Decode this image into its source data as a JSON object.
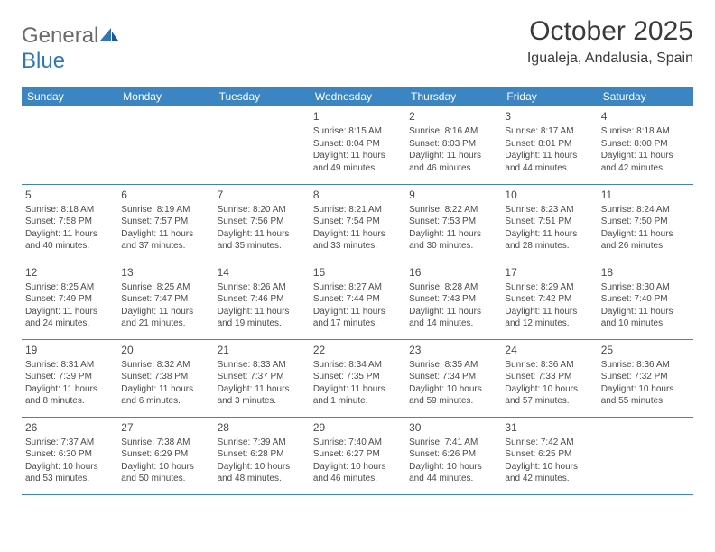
{
  "logo": {
    "text1": "General",
    "text2": "Blue"
  },
  "title": "October 2025",
  "subtitle": "Igualeja, Andalusia, Spain",
  "colors": {
    "header_bg": "#3b85c3",
    "header_text": "#ffffff",
    "text": "#4a4a4a",
    "title": "#3a3a3a",
    "logo_gray": "#6a6a6a",
    "logo_blue": "#2f78b5"
  },
  "days": [
    "Sunday",
    "Monday",
    "Tuesday",
    "Wednesday",
    "Thursday",
    "Friday",
    "Saturday"
  ],
  "weeks": [
    [
      null,
      null,
      null,
      {
        "n": "1",
        "sr": "Sunrise: 8:15 AM",
        "ss": "Sunset: 8:04 PM",
        "d1": "Daylight: 11 hours",
        "d2": "and 49 minutes."
      },
      {
        "n": "2",
        "sr": "Sunrise: 8:16 AM",
        "ss": "Sunset: 8:03 PM",
        "d1": "Daylight: 11 hours",
        "d2": "and 46 minutes."
      },
      {
        "n": "3",
        "sr": "Sunrise: 8:17 AM",
        "ss": "Sunset: 8:01 PM",
        "d1": "Daylight: 11 hours",
        "d2": "and 44 minutes."
      },
      {
        "n": "4",
        "sr": "Sunrise: 8:18 AM",
        "ss": "Sunset: 8:00 PM",
        "d1": "Daylight: 11 hours",
        "d2": "and 42 minutes."
      }
    ],
    [
      {
        "n": "5",
        "sr": "Sunrise: 8:18 AM",
        "ss": "Sunset: 7:58 PM",
        "d1": "Daylight: 11 hours",
        "d2": "and 40 minutes."
      },
      {
        "n": "6",
        "sr": "Sunrise: 8:19 AM",
        "ss": "Sunset: 7:57 PM",
        "d1": "Daylight: 11 hours",
        "d2": "and 37 minutes."
      },
      {
        "n": "7",
        "sr": "Sunrise: 8:20 AM",
        "ss": "Sunset: 7:56 PM",
        "d1": "Daylight: 11 hours",
        "d2": "and 35 minutes."
      },
      {
        "n": "8",
        "sr": "Sunrise: 8:21 AM",
        "ss": "Sunset: 7:54 PM",
        "d1": "Daylight: 11 hours",
        "d2": "and 33 minutes."
      },
      {
        "n": "9",
        "sr": "Sunrise: 8:22 AM",
        "ss": "Sunset: 7:53 PM",
        "d1": "Daylight: 11 hours",
        "d2": "and 30 minutes."
      },
      {
        "n": "10",
        "sr": "Sunrise: 8:23 AM",
        "ss": "Sunset: 7:51 PM",
        "d1": "Daylight: 11 hours",
        "d2": "and 28 minutes."
      },
      {
        "n": "11",
        "sr": "Sunrise: 8:24 AM",
        "ss": "Sunset: 7:50 PM",
        "d1": "Daylight: 11 hours",
        "d2": "and 26 minutes."
      }
    ],
    [
      {
        "n": "12",
        "sr": "Sunrise: 8:25 AM",
        "ss": "Sunset: 7:49 PM",
        "d1": "Daylight: 11 hours",
        "d2": "and 24 minutes."
      },
      {
        "n": "13",
        "sr": "Sunrise: 8:25 AM",
        "ss": "Sunset: 7:47 PM",
        "d1": "Daylight: 11 hours",
        "d2": "and 21 minutes."
      },
      {
        "n": "14",
        "sr": "Sunrise: 8:26 AM",
        "ss": "Sunset: 7:46 PM",
        "d1": "Daylight: 11 hours",
        "d2": "and 19 minutes."
      },
      {
        "n": "15",
        "sr": "Sunrise: 8:27 AM",
        "ss": "Sunset: 7:44 PM",
        "d1": "Daylight: 11 hours",
        "d2": "and 17 minutes."
      },
      {
        "n": "16",
        "sr": "Sunrise: 8:28 AM",
        "ss": "Sunset: 7:43 PM",
        "d1": "Daylight: 11 hours",
        "d2": "and 14 minutes."
      },
      {
        "n": "17",
        "sr": "Sunrise: 8:29 AM",
        "ss": "Sunset: 7:42 PM",
        "d1": "Daylight: 11 hours",
        "d2": "and 12 minutes."
      },
      {
        "n": "18",
        "sr": "Sunrise: 8:30 AM",
        "ss": "Sunset: 7:40 PM",
        "d1": "Daylight: 11 hours",
        "d2": "and 10 minutes."
      }
    ],
    [
      {
        "n": "19",
        "sr": "Sunrise: 8:31 AM",
        "ss": "Sunset: 7:39 PM",
        "d1": "Daylight: 11 hours",
        "d2": "and 8 minutes."
      },
      {
        "n": "20",
        "sr": "Sunrise: 8:32 AM",
        "ss": "Sunset: 7:38 PM",
        "d1": "Daylight: 11 hours",
        "d2": "and 6 minutes."
      },
      {
        "n": "21",
        "sr": "Sunrise: 8:33 AM",
        "ss": "Sunset: 7:37 PM",
        "d1": "Daylight: 11 hours",
        "d2": "and 3 minutes."
      },
      {
        "n": "22",
        "sr": "Sunrise: 8:34 AM",
        "ss": "Sunset: 7:35 PM",
        "d1": "Daylight: 11 hours",
        "d2": "and 1 minute."
      },
      {
        "n": "23",
        "sr": "Sunrise: 8:35 AM",
        "ss": "Sunset: 7:34 PM",
        "d1": "Daylight: 10 hours",
        "d2": "and 59 minutes."
      },
      {
        "n": "24",
        "sr": "Sunrise: 8:36 AM",
        "ss": "Sunset: 7:33 PM",
        "d1": "Daylight: 10 hours",
        "d2": "and 57 minutes."
      },
      {
        "n": "25",
        "sr": "Sunrise: 8:36 AM",
        "ss": "Sunset: 7:32 PM",
        "d1": "Daylight: 10 hours",
        "d2": "and 55 minutes."
      }
    ],
    [
      {
        "n": "26",
        "sr": "Sunrise: 7:37 AM",
        "ss": "Sunset: 6:30 PM",
        "d1": "Daylight: 10 hours",
        "d2": "and 53 minutes."
      },
      {
        "n": "27",
        "sr": "Sunrise: 7:38 AM",
        "ss": "Sunset: 6:29 PM",
        "d1": "Daylight: 10 hours",
        "d2": "and 50 minutes."
      },
      {
        "n": "28",
        "sr": "Sunrise: 7:39 AM",
        "ss": "Sunset: 6:28 PM",
        "d1": "Daylight: 10 hours",
        "d2": "and 48 minutes."
      },
      {
        "n": "29",
        "sr": "Sunrise: 7:40 AM",
        "ss": "Sunset: 6:27 PM",
        "d1": "Daylight: 10 hours",
        "d2": "and 46 minutes."
      },
      {
        "n": "30",
        "sr": "Sunrise: 7:41 AM",
        "ss": "Sunset: 6:26 PM",
        "d1": "Daylight: 10 hours",
        "d2": "and 44 minutes."
      },
      {
        "n": "31",
        "sr": "Sunrise: 7:42 AM",
        "ss": "Sunset: 6:25 PM",
        "d1": "Daylight: 10 hours",
        "d2": "and 42 minutes."
      },
      null
    ]
  ]
}
